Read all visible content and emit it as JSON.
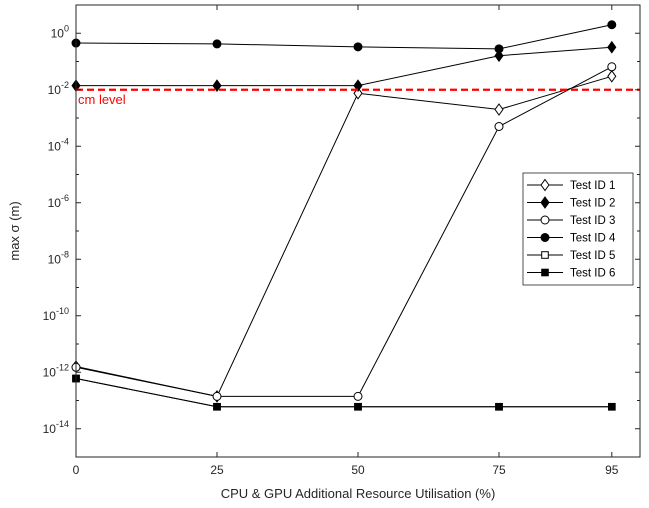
{
  "chart_data": {
    "type": "line",
    "xlabel": "CPU & GPU Additional Resource Utilisation (%)",
    "ylabel": "max  σ (m)",
    "yscale": "log",
    "xlim": [
      0,
      100
    ],
    "ylim_exp": [
      -15,
      1
    ],
    "x_ticks": [
      "0",
      "25",
      "50",
      "75",
      "95"
    ],
    "x_tick_values": [
      0,
      25,
      50,
      75,
      95
    ],
    "y_ticks": [
      {
        "exp": 0,
        "base": "10",
        "sup": "0"
      },
      {
        "exp": -2,
        "base": "10",
        "sup": "-2"
      },
      {
        "exp": -4,
        "base": "10",
        "sup": "-4"
      },
      {
        "exp": -6,
        "base": "10",
        "sup": "-6"
      },
      {
        "exp": -8,
        "base": "10",
        "sup": "-8"
      },
      {
        "exp": -10,
        "base": "10",
        "sup": "-10"
      },
      {
        "exp": -12,
        "base": "10",
        "sup": "-12"
      },
      {
        "exp": -14,
        "base": "10",
        "sup": "-14"
      }
    ],
    "grid": false,
    "legend_position": "right",
    "reference_line": {
      "value": 0.01,
      "label": "cm level",
      "color": "#ff0000"
    },
    "x": [
      0,
      25,
      50,
      75,
      95
    ],
    "series": [
      {
        "name": "Test ID 1",
        "marker": "diamond-open",
        "values": [
          1.6e-12,
          1.4e-13,
          0.0075,
          0.002,
          0.03
        ]
      },
      {
        "name": "Test ID 2",
        "marker": "diamond-filled",
        "values": [
          0.014,
          0.014,
          0.014,
          0.16,
          0.32
        ]
      },
      {
        "name": "Test ID 3",
        "marker": "circle-open",
        "values": [
          1.5e-12,
          1.4e-13,
          1.4e-13,
          0.0005,
          0.065
        ]
      },
      {
        "name": "Test ID 4",
        "marker": "circle-filled",
        "values": [
          0.45,
          0.42,
          0.33,
          0.28,
          2.0
        ]
      },
      {
        "name": "Test ID 5",
        "marker": "square-open",
        "values": [
          6e-13,
          6e-14,
          6e-14,
          6e-14,
          6e-14
        ]
      },
      {
        "name": "Test ID 6",
        "marker": "square-filled",
        "values": [
          6e-13,
          6e-14,
          6e-14,
          6e-14,
          6e-14
        ]
      }
    ]
  }
}
